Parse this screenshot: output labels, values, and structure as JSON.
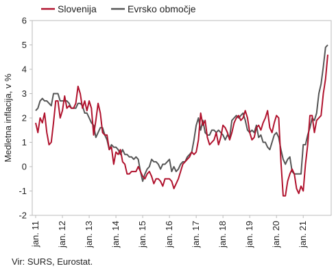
{
  "chart_data": {
    "type": "line",
    "ylabel": "Medletna inflacija, v %",
    "ylim": [
      -2,
      6
    ],
    "yticks": [
      -2,
      -1,
      0,
      1,
      2,
      3,
      4,
      5,
      6
    ],
    "xlim": [
      "2011-01",
      "2021-12"
    ],
    "xticks": [
      "jan. 11",
      "jan. 12",
      "jan. 13",
      "jan. 14",
      "jan. 15",
      "jan. 16",
      "jan. 17",
      "jan. 18",
      "jan. 19",
      "jan. 20",
      "jan. 21"
    ],
    "legend_position": "top",
    "grid": false,
    "series": [
      {
        "name": "Slovenija",
        "color": "#b0122d",
        "start": "2011-01",
        "values": [
          1.8,
          1.4,
          2.0,
          1.8,
          2.2,
          1.4,
          0.9,
          1.0,
          1.8,
          2.7,
          2.7,
          2.0,
          2.3,
          2.9,
          2.4,
          2.5,
          2.4,
          2.4,
          2.6,
          3.3,
          3.0,
          2.4,
          2.7,
          2.3,
          2.7,
          2.4,
          1.3,
          1.9,
          2.6,
          2.2,
          1.4,
          1.3,
          1.3,
          0.7,
          0.8,
          0.1,
          0.6,
          0.5,
          0.7,
          0.2,
          0.1,
          -0.3,
          -0.3,
          -0.2,
          -0.2,
          -0.2,
          0.0,
          -0.2,
          -0.4,
          -0.5,
          -0.3,
          -0.2,
          -0.4,
          -0.7,
          -0.5,
          -0.5,
          -0.6,
          -0.8,
          -0.5,
          -0.5,
          -0.5,
          -0.6,
          -0.9,
          -0.7,
          -0.5,
          -0.2,
          0.1,
          0.2,
          0.3,
          0.4,
          0.6,
          0.5,
          0.6,
          1.1,
          2.2,
          1.7,
          1.9,
          1.2,
          0.9,
          1.0,
          1.1,
          1.4,
          0.9,
          1.2,
          1.7,
          1.6,
          1.4,
          1.1,
          1.4,
          1.8,
          2.0,
          2.1,
          1.9,
          2.0,
          2.3,
          2.0,
          1.4,
          1.1,
          1.2,
          1.6,
          1.7,
          1.5,
          1.8,
          2.0,
          2.3,
          1.6,
          1.4,
          1.8,
          2.1,
          2.0,
          0.2,
          -1.2,
          -1.2,
          -0.6,
          -0.3,
          -0.1,
          -0.3,
          -0.9,
          -1.1,
          -0.8,
          -1.0,
          0.1,
          0.9,
          2.1,
          2.1,
          1.4,
          1.9,
          2.0,
          2.1,
          3.0,
          3.6,
          4.6
        ]
      },
      {
        "name": "Evrsko območje",
        "color": "#555555",
        "start": "2011-01",
        "values": [
          2.3,
          2.4,
          2.7,
          2.8,
          2.7,
          2.7,
          2.6,
          2.5,
          3.0,
          3.0,
          3.0,
          2.7,
          2.7,
          2.7,
          2.7,
          2.6,
          2.4,
          2.4,
          2.4,
          2.6,
          2.6,
          2.5,
          2.2,
          2.2,
          2.0,
          1.8,
          1.7,
          1.2,
          1.4,
          1.6,
          1.6,
          1.3,
          1.1,
          0.7,
          0.9,
          0.8,
          0.8,
          0.7,
          0.5,
          0.7,
          0.5,
          0.5,
          0.4,
          0.4,
          0.3,
          0.4,
          0.3,
          -0.2,
          -0.6,
          -0.3,
          -0.1,
          0.0,
          0.3,
          0.2,
          0.2,
          0.1,
          -0.1,
          0.1,
          0.1,
          0.2,
          0.3,
          -0.2,
          0.0,
          -0.2,
          -0.1,
          0.1,
          0.2,
          0.2,
          0.4,
          0.5,
          0.6,
          1.1,
          1.7,
          2.0,
          1.5,
          1.9,
          1.4,
          1.3,
          1.3,
          1.5,
          1.5,
          1.4,
          1.5,
          1.4,
          1.3,
          1.1,
          1.3,
          1.2,
          1.9,
          2.0,
          2.1,
          2.0,
          2.1,
          2.2,
          1.9,
          1.5,
          1.4,
          1.5,
          1.4,
          1.7,
          1.2,
          1.3,
          1.0,
          1.0,
          0.8,
          0.7,
          1.0,
          1.3,
          1.4,
          1.2,
          0.7,
          0.3,
          0.1,
          0.3,
          0.4,
          -0.2,
          -0.3,
          -0.3,
          -0.3,
          -0.3,
          0.9,
          0.9,
          1.3,
          1.6,
          2.0,
          1.9,
          2.2,
          3.0,
          3.4,
          4.1,
          4.9,
          5.0
        ]
      }
    ]
  },
  "footer": {
    "source": "Vir: SURS, Eurostat."
  }
}
